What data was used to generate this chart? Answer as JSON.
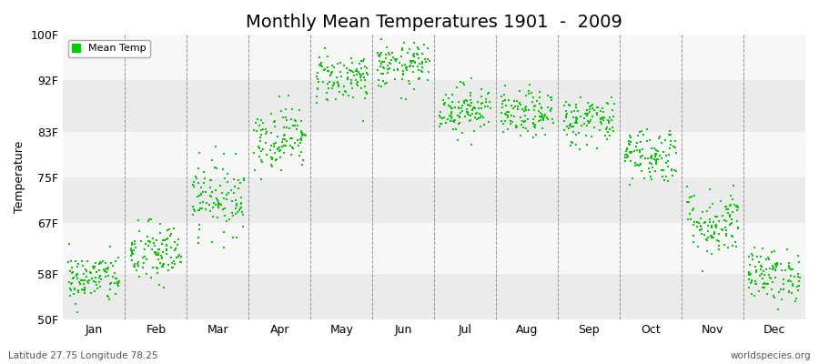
{
  "title": "Monthly Mean Temperatures 1901  -  2009",
  "ylabel": "Temperature",
  "xlabel_labels": [
    "Jan",
    "Feb",
    "Mar",
    "Apr",
    "May",
    "Jun",
    "Jul",
    "Aug",
    "Sep",
    "Oct",
    "Nov",
    "Dec"
  ],
  "yticks": [
    50,
    58,
    67,
    75,
    83,
    92,
    100
  ],
  "ytick_labels": [
    "50F",
    "58F",
    "67F",
    "75F",
    "83F",
    "92F",
    "100F"
  ],
  "ylim": [
    50,
    100
  ],
  "dot_color": "#00cc00",
  "dot_size": 3,
  "background_color": "#ffffff",
  "plot_bg_colors": [
    "#ebebeb",
    "#f7f7f7"
  ],
  "legend_label": "Mean Temp",
  "subtitle_left": "Latitude 27.75 Longitude 78.25",
  "subtitle_right": "worldspecies.org",
  "n_years": 109,
  "monthly_means": [
    57.2,
    61.5,
    71.5,
    82.0,
    92.5,
    94.5,
    87.0,
    86.0,
    85.0,
    79.0,
    67.0,
    57.8
  ],
  "monthly_stds": [
    2.2,
    2.8,
    3.2,
    2.8,
    2.2,
    2.0,
    2.2,
    2.0,
    2.2,
    2.5,
    3.0,
    2.3
  ],
  "title_fontsize": 14,
  "axis_fontsize": 9,
  "legend_fontsize": 8
}
